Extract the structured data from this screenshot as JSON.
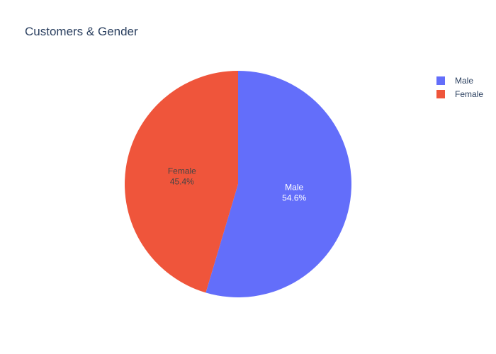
{
  "chart_data": {
    "type": "pie",
    "title": "Customers & Gender",
    "categories": [
      "Male",
      "Female"
    ],
    "values": [
      54.6,
      45.4
    ],
    "percent_labels": [
      "54.6%",
      "45.4%"
    ],
    "colors": [
      "#636efa",
      "#ef553b"
    ],
    "label_colors": [
      "#ffffff",
      "#444444"
    ],
    "legend_position": "top-right",
    "start_angle": "12 o'clock",
    "direction": "clockwise"
  }
}
